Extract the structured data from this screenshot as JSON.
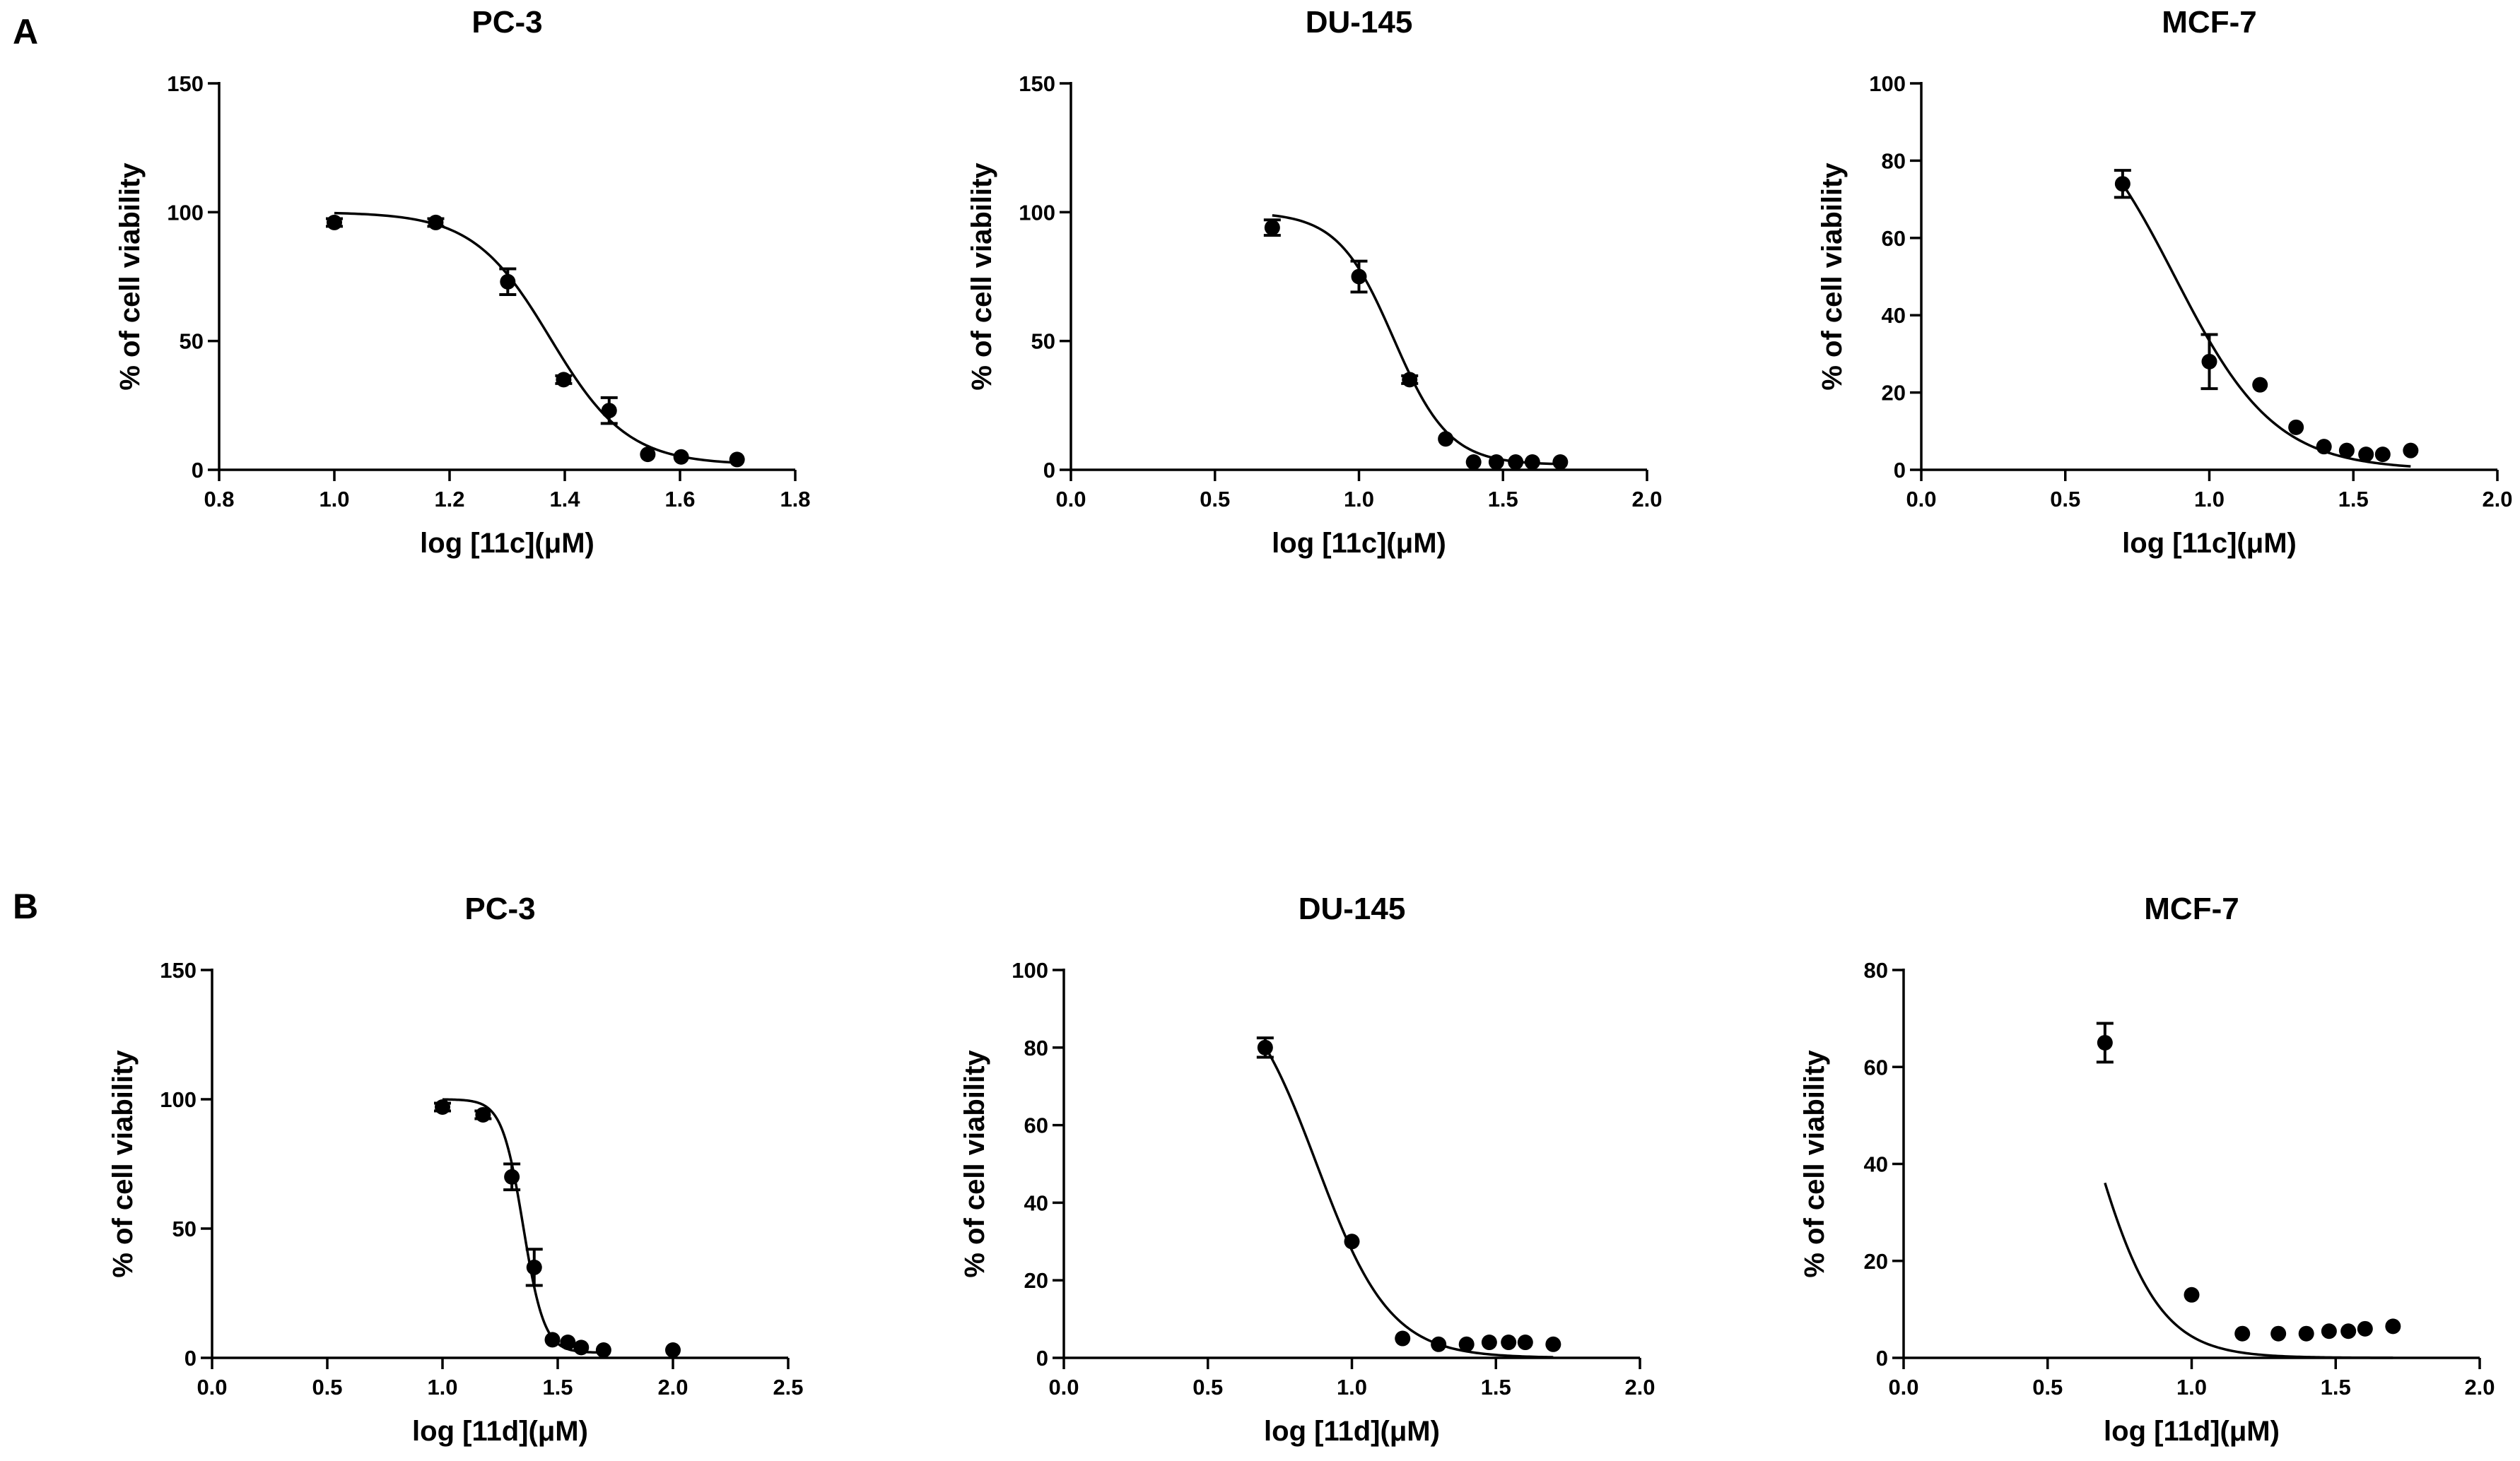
{
  "panels": [
    {
      "label": "A"
    },
    {
      "label": "B"
    }
  ],
  "chart_data": [
    {
      "panel": "A",
      "type": "scatter",
      "title": "PC-3",
      "xlabel": "log [11c](μM)",
      "ylabel": "% of cell viability",
      "xlim": [
        0.8,
        1.8
      ],
      "ylim": [
        0,
        150
      ],
      "xticks": [
        0.8,
        1.0,
        1.2,
        1.4,
        1.6,
        1.8
      ],
      "xtick_labels": [
        "0.8",
        "1.0",
        "1.2",
        "1.4",
        "1.6",
        "1.8"
      ],
      "yticks": [
        0,
        50,
        100,
        150
      ],
      "ytick_labels": [
        "0",
        "50",
        "100",
        "150"
      ],
      "x": [
        1.0,
        1.176,
        1.301,
        1.398,
        1.477,
        1.544,
        1.602,
        1.699
      ],
      "y": [
        96,
        96,
        73,
        35,
        23,
        6,
        5,
        4
      ],
      "yerr": [
        1.5,
        1.5,
        5,
        1.5,
        5,
        1,
        1,
        1
      ],
      "fit": {
        "model": "sigmoid",
        "top": 100,
        "bottom": 2,
        "logIC50": 1.375,
        "hill": 6.5,
        "x_range": [
          1.0,
          1.7
        ]
      }
    },
    {
      "panel": "A",
      "type": "scatter",
      "title": "DU-145",
      "xlabel": "log [11c](μM)",
      "ylabel": "% of cell viability",
      "xlim": [
        0.0,
        2.0
      ],
      "ylim": [
        0,
        150
      ],
      "xticks": [
        0.0,
        0.5,
        1.0,
        1.5,
        2.0
      ],
      "xtick_labels": [
        "0.0",
        "0.5",
        "1.0",
        "1.5",
        "2.0"
      ],
      "yticks": [
        0,
        50,
        100,
        150
      ],
      "ytick_labels": [
        "0",
        "50",
        "100",
        "150"
      ],
      "x": [
        0.699,
        1.0,
        1.176,
        1.301,
        1.398,
        1.477,
        1.544,
        1.602,
        1.699
      ],
      "y": [
        94,
        75,
        35,
        12,
        3,
        3,
        3,
        3,
        3
      ],
      "yerr": [
        3,
        6,
        1.5,
        1,
        1,
        1,
        1,
        1,
        1
      ],
      "fit": {
        "model": "sigmoid",
        "top": 100,
        "bottom": 2,
        "logIC50": 1.12,
        "hill": 4.5,
        "x_range": [
          0.699,
          1.699
        ]
      }
    },
    {
      "panel": "A",
      "type": "scatter",
      "title": "MCF-7",
      "xlabel": "log [11c](μM)",
      "ylabel": "% of cell viability",
      "xlim": [
        0.0,
        2.0
      ],
      "ylim": [
        0,
        100
      ],
      "xticks": [
        0.0,
        0.5,
        1.0,
        1.5,
        2.0
      ],
      "xtick_labels": [
        "0.0",
        "0.5",
        "1.0",
        "1.5",
        "2.0"
      ],
      "yticks": [
        0,
        20,
        40,
        60,
        80,
        100
      ],
      "ytick_labels": [
        "0",
        "20",
        "40",
        "60",
        "80",
        "100"
      ],
      "x": [
        0.699,
        1.0,
        1.176,
        1.301,
        1.398,
        1.477,
        1.544,
        1.602,
        1.699
      ],
      "y": [
        74,
        28,
        22,
        11,
        6,
        5,
        4,
        4,
        5
      ],
      "yerr": [
        3.5,
        7,
        1,
        1,
        1,
        1,
        1,
        1,
        1
      ],
      "fit": {
        "model": "sigmoid",
        "top": 100,
        "bottom": 0,
        "logIC50": 0.88,
        "hill": 2.5,
        "x_range": [
          0.699,
          1.699
        ]
      }
    },
    {
      "panel": "B",
      "type": "scatter",
      "title": "PC-3",
      "xlabel": "log [11d](μM)",
      "ylabel": "% of cell viability",
      "xlim": [
        0.0,
        2.5
      ],
      "ylim": [
        0,
        150
      ],
      "xticks": [
        0.0,
        0.5,
        1.0,
        1.5,
        2.0,
        2.5
      ],
      "xtick_labels": [
        "0.0",
        "0.5",
        "1.0",
        "1.5",
        "2.0",
        "2.5"
      ],
      "yticks": [
        0,
        50,
        100,
        150
      ],
      "ytick_labels": [
        "0",
        "50",
        "100",
        "150"
      ],
      "x": [
        1.0,
        1.176,
        1.301,
        1.398,
        1.477,
        1.544,
        1.602,
        1.699,
        2.0
      ],
      "y": [
        97,
        94,
        70,
        35,
        7,
        6,
        4,
        3,
        3
      ],
      "yerr": [
        1.5,
        1.5,
        5,
        7,
        1,
        1,
        1,
        1,
        1
      ],
      "fit": {
        "model": "sigmoid",
        "top": 100,
        "bottom": 2,
        "logIC50": 1.35,
        "hill": 9.5,
        "x_range": [
          1.0,
          1.699
        ]
      }
    },
    {
      "panel": "B",
      "type": "scatter",
      "title": "DU-145",
      "xlabel": "log [11d](μM)",
      "ylabel": "% of cell viability",
      "xlim": [
        0.0,
        2.0
      ],
      "ylim": [
        0,
        100
      ],
      "xticks": [
        0.0,
        0.5,
        1.0,
        1.5,
        2.0
      ],
      "xtick_labels": [
        "0.0",
        "0.5",
        "1.0",
        "1.5",
        "2.0"
      ],
      "yticks": [
        0,
        20,
        40,
        60,
        80,
        100
      ],
      "ytick_labels": [
        "0",
        "20",
        "40",
        "60",
        "80",
        "100"
      ],
      "x": [
        0.699,
        1.0,
        1.176,
        1.301,
        1.398,
        1.477,
        1.544,
        1.602,
        1.699
      ],
      "y": [
        80,
        30,
        5,
        3.5,
        3.5,
        4,
        4,
        4,
        3.5
      ],
      "yerr": [
        2.5,
        1,
        1,
        1,
        1,
        1,
        1,
        1,
        1
      ],
      "fit": {
        "model": "sigmoid",
        "top": 100,
        "bottom": 0,
        "logIC50": 0.8775,
        "hill": 3.4,
        "x_range": [
          0.699,
          1.699
        ]
      }
    },
    {
      "panel": "B",
      "type": "scatter",
      "title": "MCF-7",
      "xlabel": "log [11d](μM)",
      "ylabel": "% of cell viability",
      "xlim": [
        0.0,
        2.0
      ],
      "ylim": [
        0,
        80
      ],
      "xticks": [
        0.0,
        0.5,
        1.0,
        1.5,
        2.0
      ],
      "xtick_labels": [
        "0.0",
        "0.5",
        "1.0",
        "1.5",
        "2.0"
      ],
      "yticks": [
        0,
        20,
        40,
        60,
        80
      ],
      "ytick_labels": [
        "0",
        "20",
        "40",
        "60",
        "80"
      ],
      "x": [
        0.699,
        1.0,
        1.176,
        1.301,
        1.398,
        1.477,
        1.544,
        1.602,
        1.699
      ],
      "y": [
        65,
        13,
        5,
        5,
        5,
        5.5,
        5.5,
        6,
        6.5
      ],
      "yerr": [
        4,
        1,
        1,
        1,
        1,
        1,
        1,
        1,
        1
      ],
      "fit": {
        "model": "sigmoid",
        "top": 100,
        "bottom": 0,
        "logIC50": 0.63,
        "hill": 3.6,
        "x_range": [
          0.699,
          1.699
        ]
      }
    }
  ]
}
